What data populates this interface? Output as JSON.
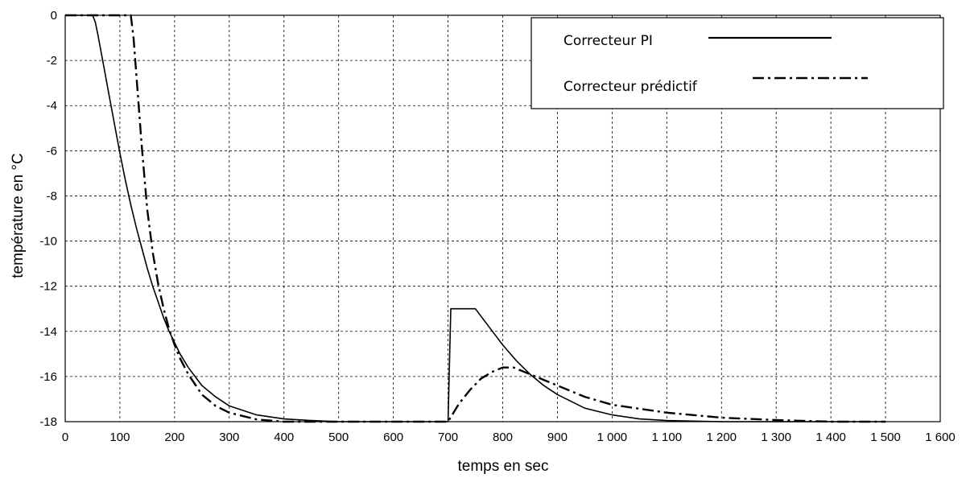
{
  "chart_data": {
    "type": "line",
    "xlabel": "temps en sec",
    "ylabel": "température en °C",
    "xlim": [
      0,
      1600
    ],
    "ylim": [
      -18,
      0
    ],
    "grid": true,
    "legend_position": "top-right",
    "x_ticks": [
      0,
      100,
      200,
      300,
      400,
      500,
      600,
      700,
      800,
      900,
      1000,
      1100,
      1200,
      1300,
      1400,
      1500,
      1600
    ],
    "x_tick_labels": [
      "0",
      "100",
      "200",
      "300",
      "400",
      "500",
      "600",
      "700",
      "800",
      "900",
      "1 000",
      "1 100",
      "1 200",
      "1 300",
      "1 400",
      "1 500",
      "1 600"
    ],
    "y_ticks": [
      0,
      -2,
      -4,
      -6,
      -8,
      -10,
      -12,
      -14,
      -16,
      -18
    ],
    "y_tick_labels": [
      "0",
      "-2",
      "-4",
      "-6",
      "-8",
      "-10",
      "-12",
      "-14",
      "-16",
      "-18"
    ],
    "series": [
      {
        "name": "Correcteur PI",
        "style": "solid",
        "color": "#000000",
        "points": [
          [
            0,
            0
          ],
          [
            50,
            0
          ],
          [
            55,
            -0.3
          ],
          [
            60,
            -0.9
          ],
          [
            70,
            -2.2
          ],
          [
            80,
            -3.5
          ],
          [
            90,
            -4.8
          ],
          [
            100,
            -6.1
          ],
          [
            110,
            -7.3
          ],
          [
            120,
            -8.4
          ],
          [
            130,
            -9.4
          ],
          [
            140,
            -10.3
          ],
          [
            150,
            -11.2
          ],
          [
            160,
            -12.0
          ],
          [
            170,
            -12.7
          ],
          [
            180,
            -13.4
          ],
          [
            190,
            -14.0
          ],
          [
            200,
            -14.5
          ],
          [
            210,
            -15.0
          ],
          [
            225,
            -15.6
          ],
          [
            250,
            -16.4
          ],
          [
            275,
            -16.9
          ],
          [
            300,
            -17.3
          ],
          [
            350,
            -17.7
          ],
          [
            400,
            -17.88
          ],
          [
            450,
            -17.95
          ],
          [
            500,
            -18
          ],
          [
            700,
            -18
          ],
          [
            705,
            -13
          ],
          [
            750,
            -13
          ],
          [
            775,
            -13.8
          ],
          [
            800,
            -14.6
          ],
          [
            825,
            -15.3
          ],
          [
            850,
            -15.9
          ],
          [
            875,
            -16.4
          ],
          [
            900,
            -16.8
          ],
          [
            950,
            -17.4
          ],
          [
            1000,
            -17.7
          ],
          [
            1050,
            -17.88
          ],
          [
            1100,
            -17.95
          ],
          [
            1200,
            -18
          ],
          [
            1500,
            -18
          ]
        ]
      },
      {
        "name": "Correcteur prédictif",
        "style": "dashdot",
        "color": "#000000",
        "points": [
          [
            0,
            0
          ],
          [
            120,
            0
          ],
          [
            125,
            -1
          ],
          [
            130,
            -2.6
          ],
          [
            140,
            -5.8
          ],
          [
            150,
            -8.6
          ],
          [
            160,
            -10.5
          ],
          [
            170,
            -11.9
          ],
          [
            180,
            -13.0
          ],
          [
            190,
            -13.9
          ],
          [
            200,
            -14.6
          ],
          [
            210,
            -15.2
          ],
          [
            225,
            -15.9
          ],
          [
            250,
            -16.8
          ],
          [
            275,
            -17.3
          ],
          [
            300,
            -17.6
          ],
          [
            350,
            -17.9
          ],
          [
            400,
            -18
          ],
          [
            700,
            -18
          ],
          [
            720,
            -17.2
          ],
          [
            740,
            -16.6
          ],
          [
            760,
            -16.1
          ],
          [
            780,
            -15.8
          ],
          [
            800,
            -15.6
          ],
          [
            820,
            -15.6
          ],
          [
            840,
            -15.8
          ],
          [
            860,
            -16.0
          ],
          [
            900,
            -16.4
          ],
          [
            950,
            -16.9
          ],
          [
            1000,
            -17.25
          ],
          [
            1100,
            -17.6
          ],
          [
            1200,
            -17.82
          ],
          [
            1300,
            -17.93
          ],
          [
            1400,
            -18
          ],
          [
            1500,
            -18
          ]
        ]
      }
    ]
  }
}
